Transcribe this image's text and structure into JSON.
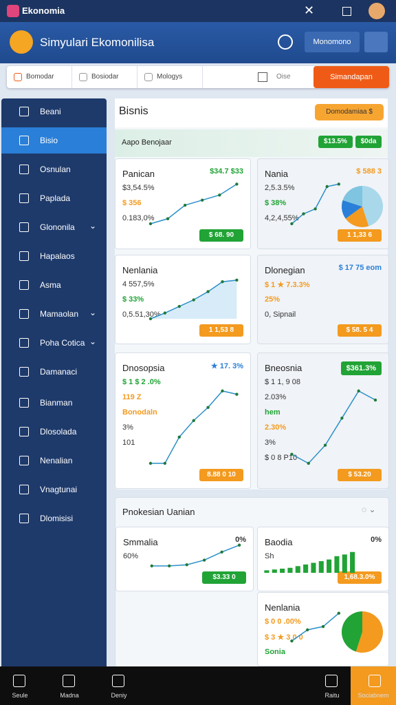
{
  "app": {
    "name": "Ekonomia"
  },
  "header": {
    "title": "Simyulari Ekomonilisa",
    "button": "Monomono"
  },
  "toolbar": {
    "tabs": [
      "Bomodar",
      "Bosiodar",
      "Mologys"
    ],
    "field": "Oise",
    "action": "Simandapan"
  },
  "nav": [
    {
      "label": "Beani"
    },
    {
      "label": "Bisio",
      "active": true
    },
    {
      "label": "Osnulan"
    },
    {
      "label": "Paplada"
    },
    {
      "label": "Glononila",
      "expandable": true
    },
    {
      "label": "Hapalaos"
    },
    {
      "label": "Asma"
    },
    {
      "label": "Mamaolan",
      "expandable": true
    },
    {
      "label": "Poha Cotica",
      "expandable": true
    },
    {
      "label": "Damanaci"
    },
    {
      "label": "Bianman"
    },
    {
      "label": "Dlosolada"
    },
    {
      "label": "Nenalian"
    },
    {
      "label": "Vnagtunai"
    },
    {
      "label": "Dlomisisi"
    }
  ],
  "panel": {
    "title": "Bisnis",
    "button": "Domodamiaa $",
    "subtitle": "Aapo Benojaar",
    "badges": [
      "$13.5%",
      "$0da"
    ]
  },
  "section": {
    "title": "Pnokesian Uanian"
  },
  "cards": [
    {
      "title": "Panican",
      "tag": "$34.7 $33",
      "tag_tone": "green",
      "stats": [
        {
          "text": "$3,54.5%",
          "tone": "dark"
        },
        {
          "text": "$ 356",
          "tone": "orange"
        },
        {
          "text": "0.183,0%",
          "tone": "dark"
        }
      ],
      "badge": "$ 68. 90",
      "badge_tone": "green",
      "line": [
        8,
        14,
        30,
        36,
        42,
        55
      ]
    },
    {
      "title": "Nania",
      "tag": "$ 588 3",
      "tag_tone": "orange",
      "stats": [
        {
          "text": "2,5.3.5%",
          "tone": "dark"
        },
        {
          "text": "$ 38%",
          "tone": "green"
        },
        {
          "text": "4,2,4,55%",
          "tone": "dark"
        }
      ],
      "badge": "1 1,33 6",
      "badge_tone": "orange",
      "line": [
        10,
        18,
        22,
        40,
        42
      ],
      "pie": [
        45,
        20,
        15,
        20
      ],
      "pie_colors": [
        "#a8d8ea",
        "#f39a1f",
        "#2a7fd8",
        "#7fc4e0"
      ]
    },
    {
      "title": "Nenlania",
      "stats": [
        {
          "text": "4 557,5%",
          "tone": "dark"
        },
        {
          "text": "$ 33%",
          "tone": "green"
        },
        {
          "text": "0,5.51,30%",
          "tone": "dark"
        }
      ],
      "badge": "1 1,53 8",
      "badge_tone": "orange",
      "line": [
        5,
        12,
        20,
        28,
        38,
        50,
        52
      ],
      "area": true
    },
    {
      "title": "Dlonegian",
      "tag": "$ 17 75 eom",
      "tag_tone": "blue",
      "stats": [
        {
          "text": "$ 1 ★ 7.3.3%",
          "tone": "orange"
        },
        {
          "text": "25%",
          "tone": "orange"
        },
        {
          "text": "0, Sipnail",
          "tone": "dark"
        }
      ],
      "badge": "$ 58. 5 4",
      "badge_tone": "orange"
    },
    {
      "title": "Dnosopsia",
      "tag": "★ 17. 3%",
      "tag_tone": "blue",
      "stats": [
        {
          "text": "$ 1 $ 2 .0%",
          "tone": "green"
        },
        {
          "text": "119 Z",
          "tone": "orange"
        },
        {
          "text": "Bonodaln",
          "tone": "orange"
        },
        {
          "text": "3%",
          "tone": "dark"
        },
        {
          "text": "101",
          "tone": "dark"
        }
      ],
      "badge": "8.88 0 10",
      "badge_tone": "orange",
      "line": [
        4,
        4,
        20,
        30,
        38,
        48,
        46
      ]
    },
    {
      "title": "Bneosnia",
      "tag": "$361.3%",
      "tag_tone": "greenfill",
      "stats": [
        {
          "text": "$ 1 1, 9 08",
          "tone": "dark"
        },
        {
          "text": "2.03%",
          "tone": "dark"
        },
        {
          "text": "hem",
          "tone": "green"
        },
        {
          "text": "2.30%",
          "tone": "orange"
        },
        {
          "text": "3%",
          "tone": "dark"
        },
        {
          "text": "$ 0 8 P10",
          "tone": "dark"
        }
      ],
      "badge": "$ 53.20",
      "badge_tone": "orange",
      "line": [
        10,
        8,
        12,
        18,
        24,
        22
      ]
    },
    {
      "title": "Smmalia",
      "tag": "0%",
      "tag_tone": "dark",
      "stats": [
        {
          "text": "60%",
          "tone": "dark"
        }
      ],
      "badge": "$3.33 0",
      "badge_tone": "green",
      "line": [
        20,
        20,
        21,
        25,
        32,
        38
      ]
    },
    {
      "title": "Baodia",
      "tag": "0%",
      "tag_tone": "dark",
      "stats": [
        {
          "text": "Sh",
          "tone": "dark"
        }
      ],
      "badge": "1,68.3.0%",
      "badge_tone": "orange",
      "bars": [
        3,
        4,
        5,
        6,
        8,
        10,
        12,
        14,
        16,
        20,
        22,
        25
      ]
    },
    {
      "title": "Nenlania",
      "stats": [
        {
          "text": "$ 0 0 .00%",
          "tone": "orange"
        },
        {
          "text": "$ 3 ★ 3 0 0",
          "tone": "orange"
        },
        {
          "text": "Sonia",
          "tone": "green"
        }
      ],
      "line": [
        5,
        15,
        18,
        30
      ],
      "pie": [
        55,
        45
      ],
      "pie_colors": [
        "#f39a1f",
        "#21a336"
      ]
    }
  ],
  "bottom_nav": [
    "Seule",
    "Madna",
    "Deniy",
    "Raitu",
    "Sociabnem"
  ]
}
